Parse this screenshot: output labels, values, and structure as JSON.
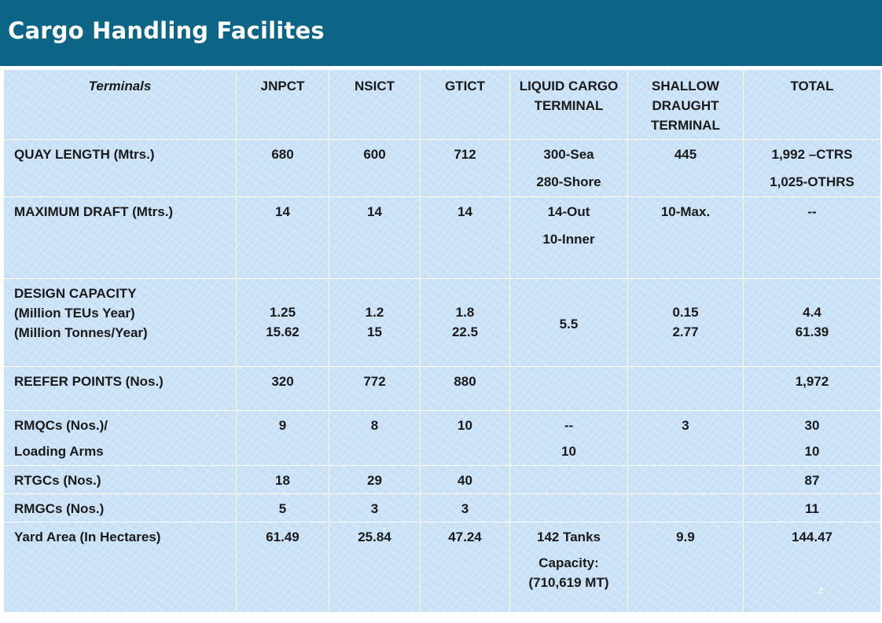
{
  "header": {
    "title": "Cargo Handling Facilites"
  },
  "slide_number": "4",
  "table": {
    "columns": [
      "Terminals",
      "JNPCT",
      "NSICT",
      "GTICT",
      "LIQUID CARGO TERMINAL",
      "SHALLOW DRAUGHT TERMINAL",
      "TOTAL"
    ],
    "rows": [
      {
        "label": [
          "QUAY LENGTH (Mtrs.)"
        ],
        "jnpct": [
          "680"
        ],
        "nsict": [
          "600"
        ],
        "gtict": [
          "712"
        ],
        "liquid": [
          "300-Sea",
          "280-Shore"
        ],
        "shallow": [
          "445"
        ],
        "total": [
          "1,992 –CTRS",
          "1,025-OTHRS"
        ]
      },
      {
        "label": [
          "MAXIMUM DRAFT (Mtrs.)"
        ],
        "jnpct": [
          "14"
        ],
        "nsict": [
          "14"
        ],
        "gtict": [
          "14"
        ],
        "liquid": [
          "14-Out",
          "10-Inner"
        ],
        "shallow": [
          "10-Max."
        ],
        "total": [
          "--"
        ]
      },
      {
        "label": [
          "DESIGN CAPACITY",
          "(Million TEUs Year)",
          "(Million Tonnes/Year)"
        ],
        "jnpct": [
          "1.25",
          "15.62"
        ],
        "nsict": [
          "1.2",
          "15"
        ],
        "gtict": [
          "1.8",
          "22.5"
        ],
        "liquid": [
          "5.5"
        ],
        "shallow": [
          "0.15",
          "2.77"
        ],
        "total": [
          "4.4",
          "61.39"
        ]
      },
      {
        "label": [
          "REEFER POINTS (Nos.)"
        ],
        "jnpct": [
          "320"
        ],
        "nsict": [
          "772"
        ],
        "gtict": [
          "880"
        ],
        "liquid": [],
        "shallow": [],
        "total": [
          "1,972"
        ]
      },
      {
        "label": [
          "RMQCs (Nos.)/",
          "Loading  Arms"
        ],
        "jnpct": [
          "9"
        ],
        "nsict": [
          "8"
        ],
        "gtict": [
          "10"
        ],
        "liquid": [
          "--",
          "10"
        ],
        "shallow": [
          "3"
        ],
        "total": [
          "30",
          "10"
        ]
      },
      {
        "label": [
          "RTGCs  (Nos.)"
        ],
        "jnpct": [
          "18"
        ],
        "nsict": [
          "29"
        ],
        "gtict": [
          "40"
        ],
        "liquid": [],
        "shallow": [],
        "total": [
          "87"
        ]
      },
      {
        "label": [
          "RMGCs (Nos.)"
        ],
        "jnpct": [
          "5"
        ],
        "nsict": [
          "3"
        ],
        "gtict": [
          "3"
        ],
        "liquid": [],
        "shallow": [],
        "total": [
          "11"
        ]
      },
      {
        "label": [
          "Yard Area (In Hectares)"
        ],
        "jnpct": [
          "61.49"
        ],
        "nsict": [
          "25.84"
        ],
        "gtict": [
          "47.24"
        ],
        "liquid": [
          "142 Tanks",
          "Capacity: (710,619 MT)"
        ],
        "shallow": [
          "9.9"
        ],
        "total": [
          "144.47"
        ]
      }
    ]
  }
}
